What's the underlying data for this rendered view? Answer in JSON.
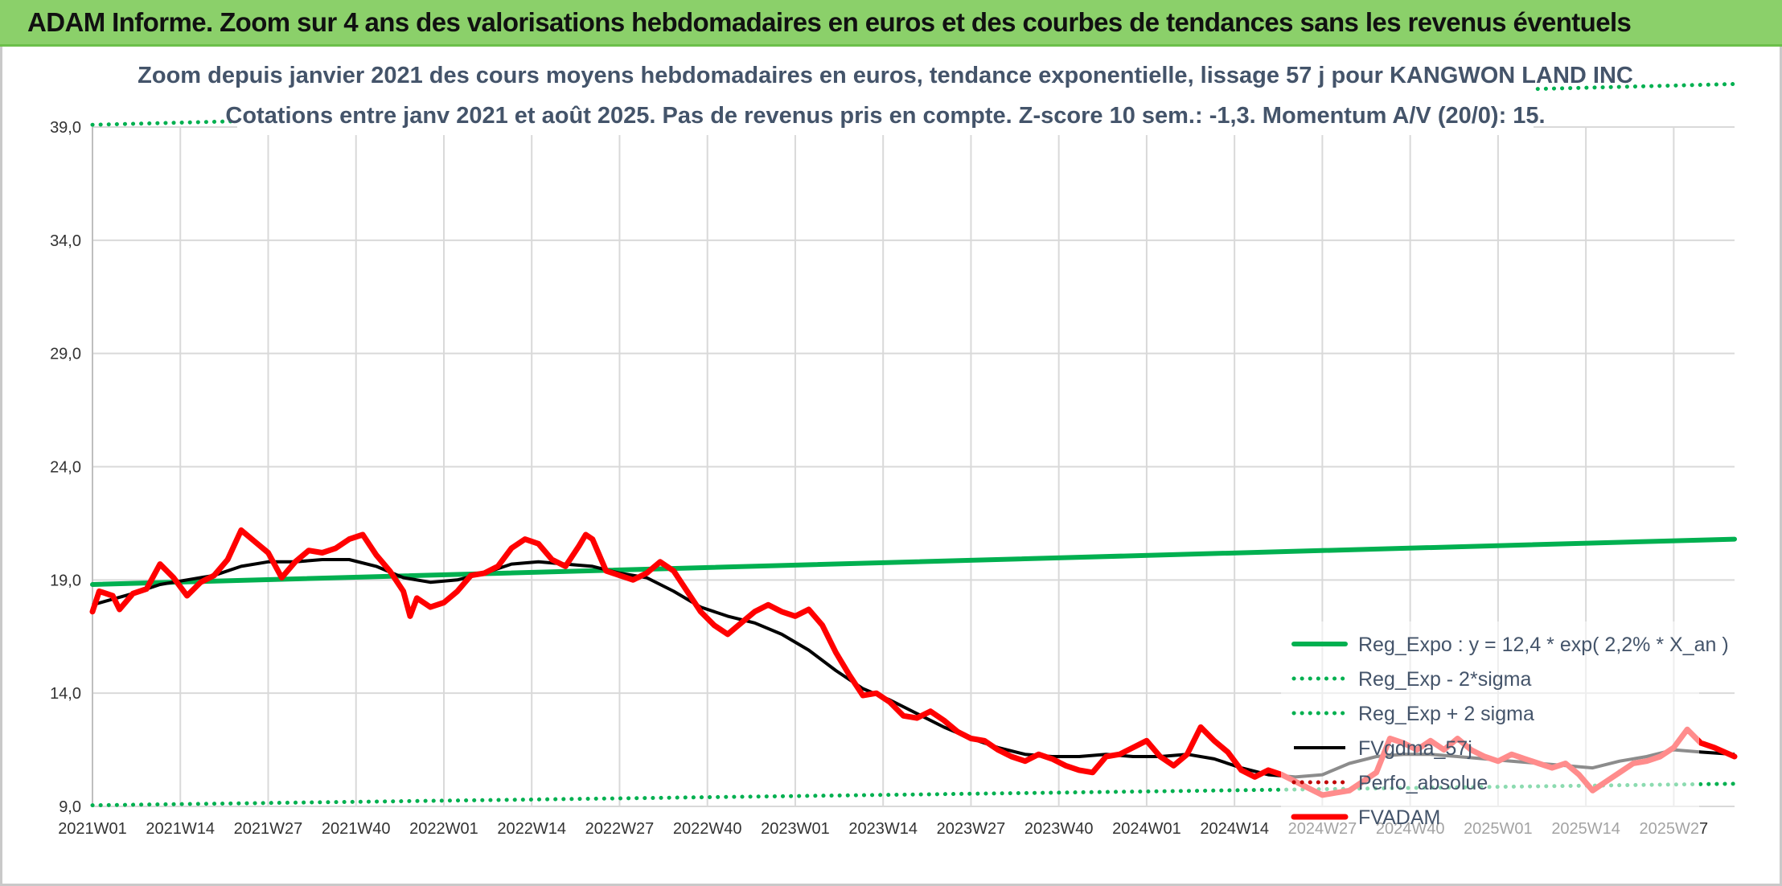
{
  "header": {
    "title": "ADAM Informe. Zoom sur 4 ans des valorisations hebdomadaires en euros et des courbes de tendances sans les revenus éventuels"
  },
  "colors": {
    "header_bg": "#8bd06a",
    "trend": "#00b050",
    "fvgdma": "#000000",
    "fvadam": "#ff0000",
    "perfo": "#c00000",
    "title_text": "#44546a",
    "grid": "#d9d9d9"
  },
  "chart_data": {
    "type": "line",
    "title_line1": "Zoom depuis janvier 2021 des cours moyens hebdomadaires en euros, tendance exponentielle, lissage 57 j pour KANGWON LAND INC",
    "title_line2": "Cotations entre janv 2021 et août 2025. Pas de revenus pris en compte. Z-score 10 sem.: -1,3. Momentum A/V (20/0): 15.",
    "xlabel": "",
    "ylabel": "",
    "ylim": [
      9,
      39
    ],
    "y_ticks": [
      "9,0",
      "14,0",
      "19,0",
      "24,0",
      "29,0",
      "34,0",
      "39,0"
    ],
    "x_ticks": [
      "2021W01",
      "2021W14",
      "2021W27",
      "2021W40",
      "2022W01",
      "2022W14",
      "2022W27",
      "2022W40",
      "2023W01",
      "2023W14",
      "2023W27",
      "2023W40",
      "2024W01",
      "2024W14",
      "2024W27",
      "2024W40",
      "2025W01",
      "2025W14",
      "2025W27"
    ],
    "x_range_weeks": [
      0,
      243
    ],
    "grid": "vertical and horizontal",
    "legend_position": "bottom-right",
    "series": [
      {
        "name": "Reg_Expo : y = 12,4 * exp( 2,2% *  X_an )",
        "style": "solid-thick",
        "color": "#00b050",
        "x": [
          0,
          243
        ],
        "y": [
          18.8,
          20.8
        ]
      },
      {
        "name": "Reg_Exp - 2*sigma",
        "style": "dotted",
        "color": "#00b050",
        "x": [
          0,
          243
        ],
        "y": [
          9.05,
          10.0
        ]
      },
      {
        "name": "Reg_Exp + 2 sigma",
        "style": "dotted",
        "color": "#00b050",
        "x": [
          0,
          243
        ],
        "y": [
          39.1,
          40.9
        ]
      },
      {
        "name": "FVgdma_57j",
        "style": "solid",
        "color": "#000000",
        "x": [
          0,
          6,
          10,
          14,
          18,
          22,
          26,
          30,
          34,
          38,
          42,
          46,
          50,
          54,
          58,
          62,
          66,
          70,
          74,
          78,
          82,
          86,
          90,
          94,
          98,
          102,
          106,
          110,
          114,
          118,
          122,
          126,
          130,
          134,
          138,
          142,
          146,
          150,
          154,
          158,
          162,
          166,
          170,
          174,
          178,
          182,
          186,
          190,
          194,
          198,
          202,
          206,
          210,
          214,
          218,
          222,
          226,
          230,
          234,
          238,
          243
        ],
        "y": [
          17.9,
          18.4,
          18.8,
          19.0,
          19.2,
          19.6,
          19.8,
          19.8,
          19.9,
          19.9,
          19.6,
          19.1,
          18.9,
          19.0,
          19.3,
          19.7,
          19.8,
          19.7,
          19.6,
          19.3,
          19.1,
          18.5,
          17.8,
          17.4,
          17.1,
          16.6,
          15.9,
          15.0,
          14.2,
          13.7,
          13.1,
          12.5,
          12.0,
          11.6,
          11.3,
          11.2,
          11.2,
          11.3,
          11.2,
          11.2,
          11.3,
          11.1,
          10.7,
          10.4,
          10.3,
          10.4,
          10.9,
          11.2,
          11.3,
          11.3,
          11.2,
          11.1,
          11.0,
          10.9,
          10.8,
          10.7,
          11.0,
          11.2,
          11.5,
          11.4,
          11.3
        ]
      },
      {
        "name": "Perfo_absolue",
        "style": "dotted",
        "color": "#c00000",
        "x": [],
        "y": []
      },
      {
        "name": "FVADAM",
        "style": "solid-thick",
        "color": "#ff0000",
        "x": [
          0,
          1,
          3,
          4,
          6,
          8,
          10,
          12,
          14,
          16,
          18,
          20,
          22,
          24,
          26,
          28,
          30,
          32,
          34,
          36,
          38,
          40,
          42,
          44,
          46,
          47,
          48,
          50,
          52,
          54,
          56,
          58,
          60,
          62,
          64,
          66,
          68,
          70,
          72,
          73,
          74,
          76,
          78,
          80,
          82,
          84,
          86,
          88,
          90,
          92,
          94,
          96,
          98,
          100,
          102,
          104,
          106,
          108,
          110,
          112,
          114,
          116,
          118,
          120,
          122,
          124,
          126,
          128,
          130,
          132,
          134,
          136,
          138,
          140,
          142,
          144,
          146,
          148,
          150,
          152,
          154,
          156,
          158,
          160,
          162,
          164,
          166,
          168,
          170,
          172,
          174,
          176,
          178,
          180,
          182,
          184,
          186,
          188,
          190,
          192,
          194,
          196,
          198,
          200,
          202,
          204,
          206,
          208,
          210,
          212,
          214,
          216,
          218,
          220,
          222,
          224,
          226,
          228,
          230,
          232,
          234,
          236,
          238,
          240,
          243
        ],
        "y": [
          17.6,
          18.5,
          18.3,
          17.7,
          18.4,
          18.6,
          19.7,
          19.1,
          18.3,
          18.9,
          19.2,
          19.9,
          21.2,
          20.7,
          20.2,
          19.1,
          19.8,
          20.3,
          20.2,
          20.4,
          20.8,
          21.0,
          20.1,
          19.4,
          18.5,
          17.4,
          18.2,
          17.8,
          18.0,
          18.5,
          19.2,
          19.3,
          19.6,
          20.4,
          20.8,
          20.6,
          19.9,
          19.6,
          20.5,
          21.0,
          20.8,
          19.4,
          19.2,
          19.0,
          19.3,
          19.8,
          19.4,
          18.5,
          17.6,
          17.0,
          16.6,
          17.1,
          17.6,
          17.9,
          17.6,
          17.4,
          17.7,
          17.0,
          15.8,
          14.8,
          13.9,
          14.0,
          13.6,
          13.0,
          12.9,
          13.2,
          12.8,
          12.3,
          12.0,
          11.9,
          11.5,
          11.2,
          11.0,
          11.3,
          11.1,
          10.8,
          10.6,
          10.5,
          11.2,
          11.3,
          11.6,
          11.9,
          11.2,
          10.8,
          11.3,
          12.5,
          11.9,
          11.4,
          10.6,
          10.3,
          10.6,
          10.4,
          10.1,
          9.8,
          9.5,
          9.6,
          9.7,
          10.1,
          10.5,
          12.0,
          11.8,
          11.5,
          11.9,
          11.5,
          12.0,
          11.5,
          11.2,
          11.0,
          11.3,
          11.1,
          10.9,
          10.7,
          10.9,
          10.4,
          9.7,
          10.1,
          10.5,
          10.9,
          11.0,
          11.2,
          11.6,
          12.4,
          11.8,
          11.6,
          11.2
        ]
      }
    ]
  }
}
